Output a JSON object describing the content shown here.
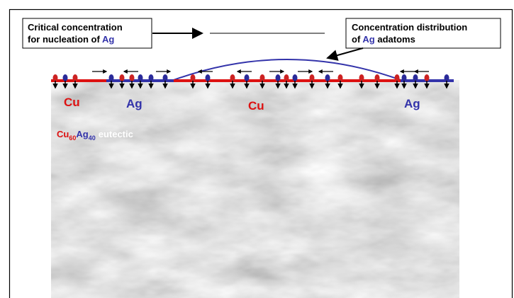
{
  "left_box": {
    "line1": "Critical concentration",
    "line2": "for nucleation of",
    "element": "Ag"
  },
  "right_box": {
    "line1": "Concentration distribution",
    "line2_prefix": "of",
    "element": "Ag",
    "line2_suffix": "adatoms"
  },
  "region_labels": [
    "Cu",
    "Ag",
    "Cu",
    "Ag"
  ],
  "alloy_label": {
    "cu": "Cu",
    "cu_sub": "60",
    "ag": "Ag",
    "ag_sub": "40",
    "suffix": "eutectic"
  }
}
